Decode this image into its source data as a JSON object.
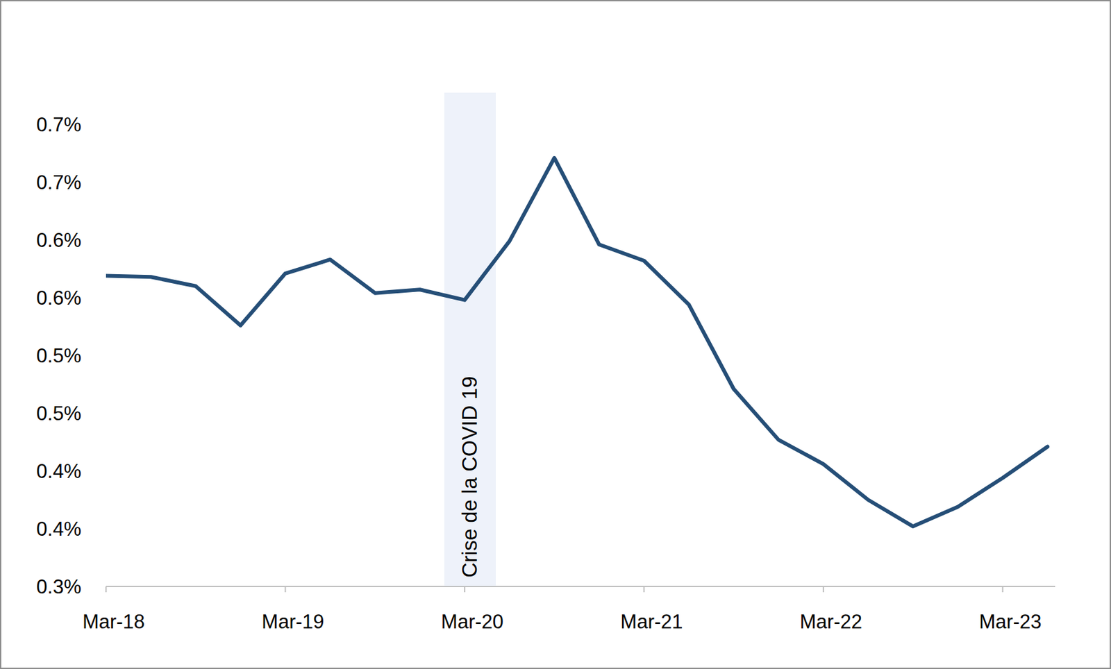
{
  "chart_data": {
    "type": "line",
    "categories": [
      "Mar-18",
      null,
      null,
      null,
      "Mar-19",
      null,
      null,
      null,
      "Mar-20",
      null,
      null,
      null,
      "Mar-21",
      null,
      null,
      null,
      "Mar-22",
      null,
      null,
      null,
      "Mar-23",
      null
    ],
    "values": [
      0.569,
      0.568,
      0.56,
      0.526,
      0.571,
      0.583,
      0.554,
      0.557,
      0.548,
      0.599,
      0.671,
      0.596,
      0.582,
      0.544,
      0.471,
      0.427,
      0.406,
      0.375,
      0.352,
      0.369,
      0.394,
      0.421
    ],
    "color": "#254e77",
    "ylim": [
      0.3,
      0.7
    ],
    "yticks": [
      {
        "value": 0.3,
        "label": "0.3%"
      },
      {
        "value": 0.35,
        "label": "0.4%"
      },
      {
        "value": 0.4,
        "label": "0.4%"
      },
      {
        "value": 0.45,
        "label": "0.5%"
      },
      {
        "value": 0.5,
        "label": "0.5%"
      },
      {
        "value": 0.55,
        "label": "0.6%"
      },
      {
        "value": 0.6,
        "label": "0.6%"
      },
      {
        "value": 0.65,
        "label": "0.7%"
      },
      {
        "value": 0.7,
        "label": "0.7%"
      }
    ],
    "grid": false,
    "annotations": [
      {
        "text": "Crise de  la COVID 19",
        "x": "Mar-20"
      }
    ]
  }
}
